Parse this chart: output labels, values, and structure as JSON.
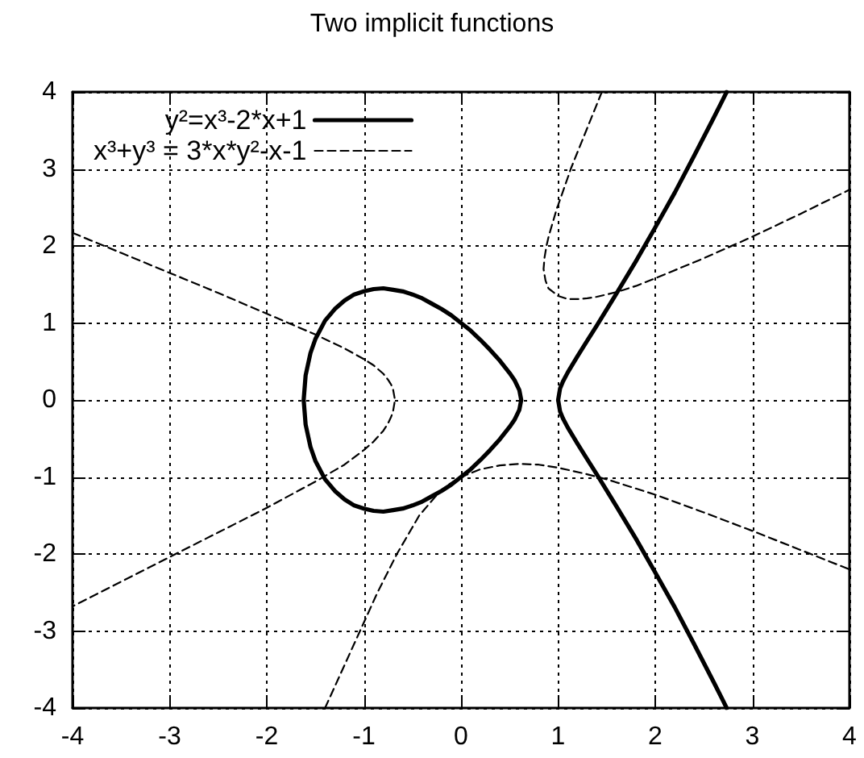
{
  "chart_data": {
    "type": "line",
    "title": "Two implicit functions",
    "xlim": [
      -4,
      4
    ],
    "ylim": [
      -4,
      4
    ],
    "xticks": [
      -4,
      -3,
      -2,
      -1,
      0,
      1,
      2,
      3,
      4
    ],
    "yticks": [
      -4,
      -3,
      -2,
      -1,
      0,
      1,
      2,
      3,
      4
    ],
    "grid": true,
    "legend": "top left",
    "marker": "none",
    "series": [
      {
        "name": "y²=x³-2*x+1",
        "color": "#000000",
        "line_style": "solid",
        "x": [
          -1.6,
          -1.62,
          -1.6,
          -1.55,
          -1.5,
          -1.4,
          -1.3,
          -1.2,
          -1.1,
          -1,
          -0.9,
          -0.8,
          -0.7,
          -0.6,
          -0.5,
          -0.4,
          -0.3,
          -0.2,
          -0.1,
          0,
          0.1,
          0.2,
          0.3,
          0.4,
          0.5,
          0.55,
          0.6,
          0.62,
          0.6,
          0.55,
          0.5,
          0.4,
          0.3,
          0.2,
          0.1,
          0,
          -0.1,
          -0.2,
          -0.3,
          -0.4,
          -0.5,
          -0.6,
          -0.7,
          -0.8,
          -0.9,
          -1,
          -1.1,
          -1.2,
          -1.3,
          -1.4,
          -1.5,
          -1.55,
          -1.6,
          -1.62,
          null,
          2.735,
          2.7,
          2.6,
          2.4,
          2.2,
          2,
          1.8,
          1.6,
          1.4,
          1.3,
          1.2,
          1.1,
          1.05,
          1.02,
          1,
          1.02,
          1.05,
          1.1,
          1.2,
          1.3,
          1.4,
          1.6,
          1.8,
          2,
          2.2,
          2.4,
          2.6,
          2.7,
          2.735
        ],
        "values": [
          -0.32,
          0,
          0.32,
          0.61,
          0.79,
          1.03,
          1.18,
          1.29,
          1.37,
          1.41,
          1.44,
          1.45,
          1.43,
          1.41,
          1.37,
          1.32,
          1.25,
          1.18,
          1.1,
          1,
          0.9,
          0.78,
          0.65,
          0.51,
          0.35,
          0.26,
          0.13,
          0,
          -0.13,
          -0.26,
          -0.35,
          -0.51,
          -0.65,
          -0.78,
          -0.9,
          -1,
          -1.1,
          -1.18,
          -1.25,
          -1.32,
          -1.37,
          -1.41,
          -1.43,
          -1.45,
          -1.44,
          -1.41,
          -1.37,
          -1.29,
          -1.18,
          -1.03,
          -0.79,
          -0.61,
          -0.32,
          0,
          null,
          -4,
          -3.91,
          -3.66,
          -3.17,
          -2.69,
          -2.24,
          -1.8,
          -1.38,
          -0.97,
          -0.77,
          -0.57,
          -0.36,
          -0.24,
          -0.15,
          0,
          0.15,
          0.24,
          0.36,
          0.57,
          0.77,
          0.97,
          1.38,
          1.8,
          2.24,
          2.69,
          3.17,
          3.66,
          3.91,
          4
        ]
      },
      {
        "name": "x³+y³ = 3*x*y²-x-1",
        "color": "#000000",
        "line_style": "dashed",
        "x": [
          -4,
          -3.5,
          -3,
          -2.5,
          -2,
          -1.5,
          -1.2,
          -1,
          -0.9,
          -0.8,
          -0.75,
          -0.72,
          -0.7,
          -0.68,
          -0.7,
          -0.72,
          -0.75,
          -0.8,
          -0.9,
          -1,
          -1.2,
          -1.5,
          -2,
          -2.5,
          -3,
          -3.5,
          -4,
          null,
          -1.4,
          -1.22,
          -1.04,
          -0.86,
          -0.66,
          -0.43,
          -0.26,
          -0.13,
          0,
          0.2,
          0.4,
          0.6,
          0.8,
          1,
          1.25,
          1.5,
          2,
          2.5,
          3,
          3.5,
          4,
          null,
          1.45,
          1.37,
          1.29,
          1.2,
          1.13,
          1.1,
          1,
          0.99,
          0.92,
          0.9,
          0.88,
          0.86,
          0.85,
          0.87,
          0.9,
          1,
          1.1,
          1.2,
          1.3,
          1.4,
          1.6,
          1.8,
          2,
          2.5,
          3,
          3.5,
          4
        ],
        "values": [
          2.17,
          1.91,
          1.65,
          1.39,
          1.12,
          0.85,
          0.67,
          0.53,
          0.45,
          0.34,
          0.26,
          0.2,
          0.14,
          0,
          -0.15,
          -0.22,
          -0.3,
          -0.4,
          -0.54,
          -0.65,
          -0.84,
          -1.06,
          -1.4,
          -1.72,
          -2.04,
          -2.36,
          -2.68,
          null,
          -4,
          -3.5,
          -3,
          -2.5,
          -2,
          -1.5,
          -1.25,
          -1.1,
          -1,
          -0.9,
          -0.85,
          -0.83,
          -0.84,
          -0.88,
          -0.95,
          -1.03,
          -1.23,
          -1.46,
          -1.7,
          -1.95,
          -2.2,
          null,
          4,
          3.75,
          3.5,
          3.22,
          3,
          2.89,
          2.53,
          2.5,
          2.2,
          2.11,
          2,
          1.85,
          1.7,
          1.55,
          1.45,
          1.35,
          1.31,
          1.31,
          1.32,
          1.34,
          1.4,
          1.48,
          1.58,
          1.84,
          2.12,
          2.42,
          2.73
        ]
      }
    ]
  }
}
